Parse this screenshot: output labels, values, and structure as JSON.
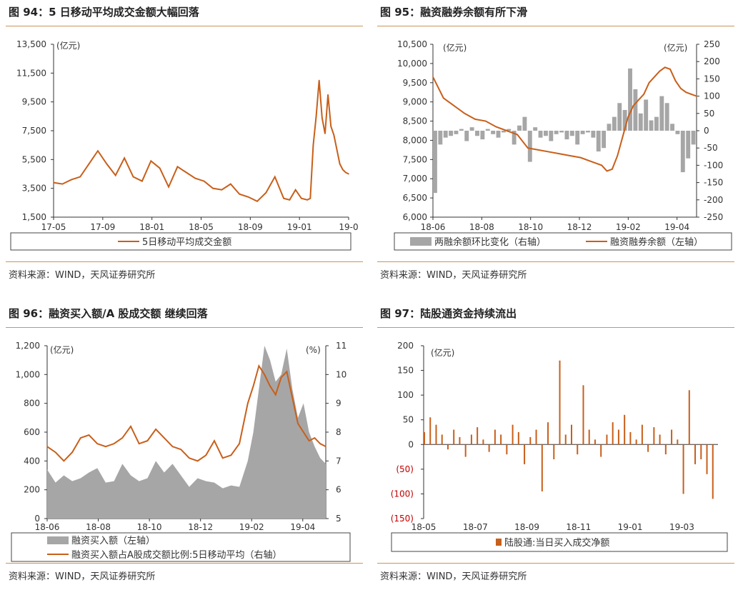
{
  "colors": {
    "orange": "#c85f1a",
    "gray": "#a6a6a6",
    "rule": "#c9955a",
    "red": "#c00000"
  },
  "panels": [
    {
      "title": "图 94：5 日移动平均成交金额大幅回落",
      "source": "资料来源：WIND，天风证券研究所"
    },
    {
      "title": "图 95：融资融券余额有所下滑",
      "source": "资料来源：WIND，天风证券研究所"
    },
    {
      "title": "图 96：融资买入额/A 股成交额 继续回落",
      "source": "资料来源：WIND，天风证券研究所"
    },
    {
      "title": "图 97：陆股通资金持续流出",
      "source": "资料来源：WIND，天风证券研究所"
    }
  ],
  "chart_data": [
    {
      "type": "line",
      "unit_left": "(亿元)",
      "y_ticks": [
        "13,500",
        "11,500",
        "9,500",
        "7,500",
        "5,500",
        "3,500",
        "1,500"
      ],
      "ylim": [
        1500,
        13500
      ],
      "x_ticks": [
        "17-05",
        "17-09",
        "18-01",
        "18-05",
        "18-09",
        "19-01",
        "19-0"
      ],
      "series": [
        {
          "name": "5日移动平均成交金额",
          "x": [
            0,
            0.03,
            0.06,
            0.09,
            0.12,
            0.15,
            0.18,
            0.21,
            0.24,
            0.27,
            0.3,
            0.33,
            0.36,
            0.39,
            0.42,
            0.45,
            0.48,
            0.51,
            0.54,
            0.57,
            0.6,
            0.63,
            0.66,
            0.69,
            0.72,
            0.75,
            0.78,
            0.8,
            0.82,
            0.84,
            0.86,
            0.87,
            0.88,
            0.89,
            0.9,
            0.91,
            0.92,
            0.93,
            0.94,
            0.95,
            0.96,
            0.97,
            0.98,
            0.99,
            1.0
          ],
          "values": [
            3900,
            3800,
            4100,
            4300,
            5200,
            6100,
            5200,
            4400,
            5600,
            4300,
            4000,
            5400,
            4900,
            3600,
            5000,
            4600,
            4200,
            4000,
            3500,
            3400,
            3800,
            3100,
            2900,
            2600,
            3200,
            4300,
            2800,
            2700,
            3400,
            2800,
            2700,
            2800,
            6500,
            8500,
            11000,
            8400,
            7300,
            10000,
            7800,
            7200,
            6200,
            5200,
            4800,
            4600,
            4500
          ]
        }
      ]
    },
    {
      "type": "line+bar",
      "unit_left": "(亿元)",
      "unit_right": "(亿元)",
      "y_left_ticks": [
        "10,500",
        "10,000",
        "9,500",
        "9,000",
        "8,500",
        "8,000",
        "7,500",
        "7,000",
        "6,500",
        "6,000"
      ],
      "y_right_ticks": [
        "250",
        "200",
        "150",
        "100",
        "50",
        "0",
        "-50",
        "-100",
        "-150",
        "-200",
        "-250"
      ],
      "ylim_left": [
        6000,
        10500
      ],
      "ylim_right": [
        -250,
        250
      ],
      "x_ticks": [
        "18-06",
        "18-08",
        "18-10",
        "18-12",
        "19-02",
        "19-04"
      ],
      "series": [
        {
          "name": "两融余额环比变化（右轴）",
          "type": "bar",
          "x": [
            0,
            0.02,
            0.04,
            0.06,
            0.08,
            0.1,
            0.12,
            0.14,
            0.16,
            0.18,
            0.2,
            0.22,
            0.24,
            0.26,
            0.28,
            0.3,
            0.32,
            0.34,
            0.36,
            0.38,
            0.4,
            0.42,
            0.44,
            0.46,
            0.48,
            0.5,
            0.52,
            0.54,
            0.56,
            0.58,
            0.6,
            0.62,
            0.64,
            0.66,
            0.68,
            0.7,
            0.72,
            0.74,
            0.76,
            0.78,
            0.8,
            0.82,
            0.84,
            0.86,
            0.88,
            0.9,
            0.92,
            0.94,
            0.96,
            0.98
          ],
          "values": [
            -180,
            -40,
            -20,
            -15,
            -10,
            5,
            -30,
            10,
            -15,
            -25,
            5,
            -10,
            -20,
            -5,
            5,
            -40,
            15,
            40,
            -90,
            10,
            -20,
            -15,
            -30,
            -10,
            -5,
            -25,
            -15,
            -40,
            -10,
            -5,
            -20,
            -60,
            -50,
            20,
            40,
            80,
            60,
            180,
            120,
            50,
            90,
            30,
            40,
            100,
            80,
            20,
            -10,
            -120,
            -80,
            -40
          ]
        },
        {
          "name": "融资融券余额（左轴）",
          "type": "line",
          "x": [
            0,
            0.04,
            0.08,
            0.12,
            0.16,
            0.2,
            0.24,
            0.28,
            0.32,
            0.36,
            0.4,
            0.44,
            0.48,
            0.52,
            0.56,
            0.6,
            0.64,
            0.66,
            0.68,
            0.7,
            0.72,
            0.74,
            0.76,
            0.78,
            0.8,
            0.82,
            0.84,
            0.86,
            0.88,
            0.9,
            0.92,
            0.94,
            0.96,
            0.98,
            1.0
          ],
          "values": [
            9650,
            9100,
            8900,
            8700,
            8550,
            8500,
            8350,
            8250,
            8150,
            7800,
            7750,
            7700,
            7650,
            7600,
            7550,
            7450,
            7350,
            7200,
            7250,
            7600,
            8100,
            8600,
            8900,
            9050,
            9200,
            9500,
            9650,
            9800,
            9900,
            9850,
            9550,
            9350,
            9250,
            9200,
            9150
          ]
        }
      ]
    },
    {
      "type": "area+line",
      "unit_left": "(亿元)",
      "unit_right": "(%)",
      "y_left_ticks": [
        "1,200",
        "1,000",
        "800",
        "600",
        "400",
        "200",
        "0"
      ],
      "y_right_ticks": [
        "11",
        "10",
        "9",
        "8",
        "7",
        "6",
        "5"
      ],
      "ylim_left": [
        0,
        1200
      ],
      "ylim_right": [
        5,
        11
      ],
      "x_ticks": [
        "18-06",
        "18-08",
        "18-10",
        "18-12",
        "19-02",
        "19-04"
      ],
      "series": [
        {
          "name": "融资买入额（左轴）",
          "type": "area",
          "x": [
            0,
            0.03,
            0.06,
            0.09,
            0.12,
            0.15,
            0.18,
            0.21,
            0.24,
            0.27,
            0.3,
            0.33,
            0.36,
            0.39,
            0.42,
            0.45,
            0.48,
            0.51,
            0.54,
            0.57,
            0.6,
            0.63,
            0.66,
            0.69,
            0.72,
            0.74,
            0.76,
            0.78,
            0.8,
            0.82,
            0.84,
            0.86,
            0.88,
            0.9,
            0.92,
            0.94,
            0.96,
            0.98,
            1.0
          ],
          "values": [
            340,
            250,
            300,
            260,
            280,
            320,
            350,
            250,
            260,
            380,
            300,
            260,
            280,
            400,
            320,
            380,
            300,
            220,
            280,
            260,
            250,
            210,
            230,
            220,
            400,
            600,
            900,
            1200,
            1100,
            950,
            1000,
            1180,
            900,
            700,
            800,
            600,
            500,
            420,
            380
          ]
        },
        {
          "name": "融资买入额占A股成交额比例:5日移动平均（右轴）",
          "type": "line",
          "x": [
            0,
            0.03,
            0.06,
            0.09,
            0.12,
            0.15,
            0.18,
            0.21,
            0.24,
            0.27,
            0.3,
            0.33,
            0.36,
            0.39,
            0.42,
            0.45,
            0.48,
            0.51,
            0.54,
            0.57,
            0.6,
            0.63,
            0.66,
            0.69,
            0.72,
            0.74,
            0.76,
            0.78,
            0.8,
            0.82,
            0.84,
            0.86,
            0.88,
            0.9,
            0.92,
            0.94,
            0.96,
            0.98,
            1.0
          ],
          "values": [
            7.5,
            7.3,
            7.0,
            7.3,
            7.8,
            7.9,
            7.6,
            7.5,
            7.6,
            7.8,
            8.2,
            7.6,
            7.7,
            8.1,
            7.8,
            7.5,
            7.4,
            7.1,
            7.0,
            7.2,
            7.7,
            7.1,
            7.2,
            7.6,
            9.0,
            9.6,
            10.3,
            10.0,
            9.6,
            9.3,
            9.9,
            10.1,
            9.2,
            8.3,
            8.0,
            7.7,
            7.8,
            7.6,
            7.5
          ]
        }
      ]
    },
    {
      "type": "bar",
      "unit_left": "(亿元)",
      "y_ticks": [
        "200",
        "150",
        "100",
        "50",
        "0",
        "(50)",
        "(100)",
        "(150)"
      ],
      "ylim": [
        -150,
        200
      ],
      "x_ticks": [
        "18-05",
        "18-07",
        "18-09",
        "18-11",
        "19-01",
        "19-03"
      ],
      "series": [
        {
          "name": "陆股通:当日买入成交净额",
          "type": "bar",
          "x": [
            0,
            0.02,
            0.04,
            0.06,
            0.08,
            0.1,
            0.12,
            0.14,
            0.16,
            0.18,
            0.2,
            0.22,
            0.24,
            0.26,
            0.28,
            0.3,
            0.32,
            0.34,
            0.36,
            0.38,
            0.4,
            0.42,
            0.44,
            0.46,
            0.48,
            0.5,
            0.52,
            0.54,
            0.56,
            0.58,
            0.6,
            0.62,
            0.64,
            0.66,
            0.68,
            0.7,
            0.72,
            0.74,
            0.76,
            0.78,
            0.8,
            0.82,
            0.84,
            0.86,
            0.88,
            0.9,
            0.92,
            0.94,
            0.96,
            0.98
          ],
          "values": [
            25,
            55,
            40,
            20,
            -10,
            30,
            15,
            -25,
            20,
            35,
            10,
            -15,
            30,
            20,
            -20,
            40,
            25,
            -40,
            15,
            30,
            -95,
            45,
            -30,
            170,
            20,
            40,
            -20,
            120,
            30,
            10,
            -25,
            20,
            45,
            30,
            60,
            25,
            10,
            40,
            -15,
            35,
            20,
            -20,
            30,
            10,
            -100,
            110,
            -40,
            -30,
            -60,
            -110
          ]
        }
      ]
    }
  ]
}
